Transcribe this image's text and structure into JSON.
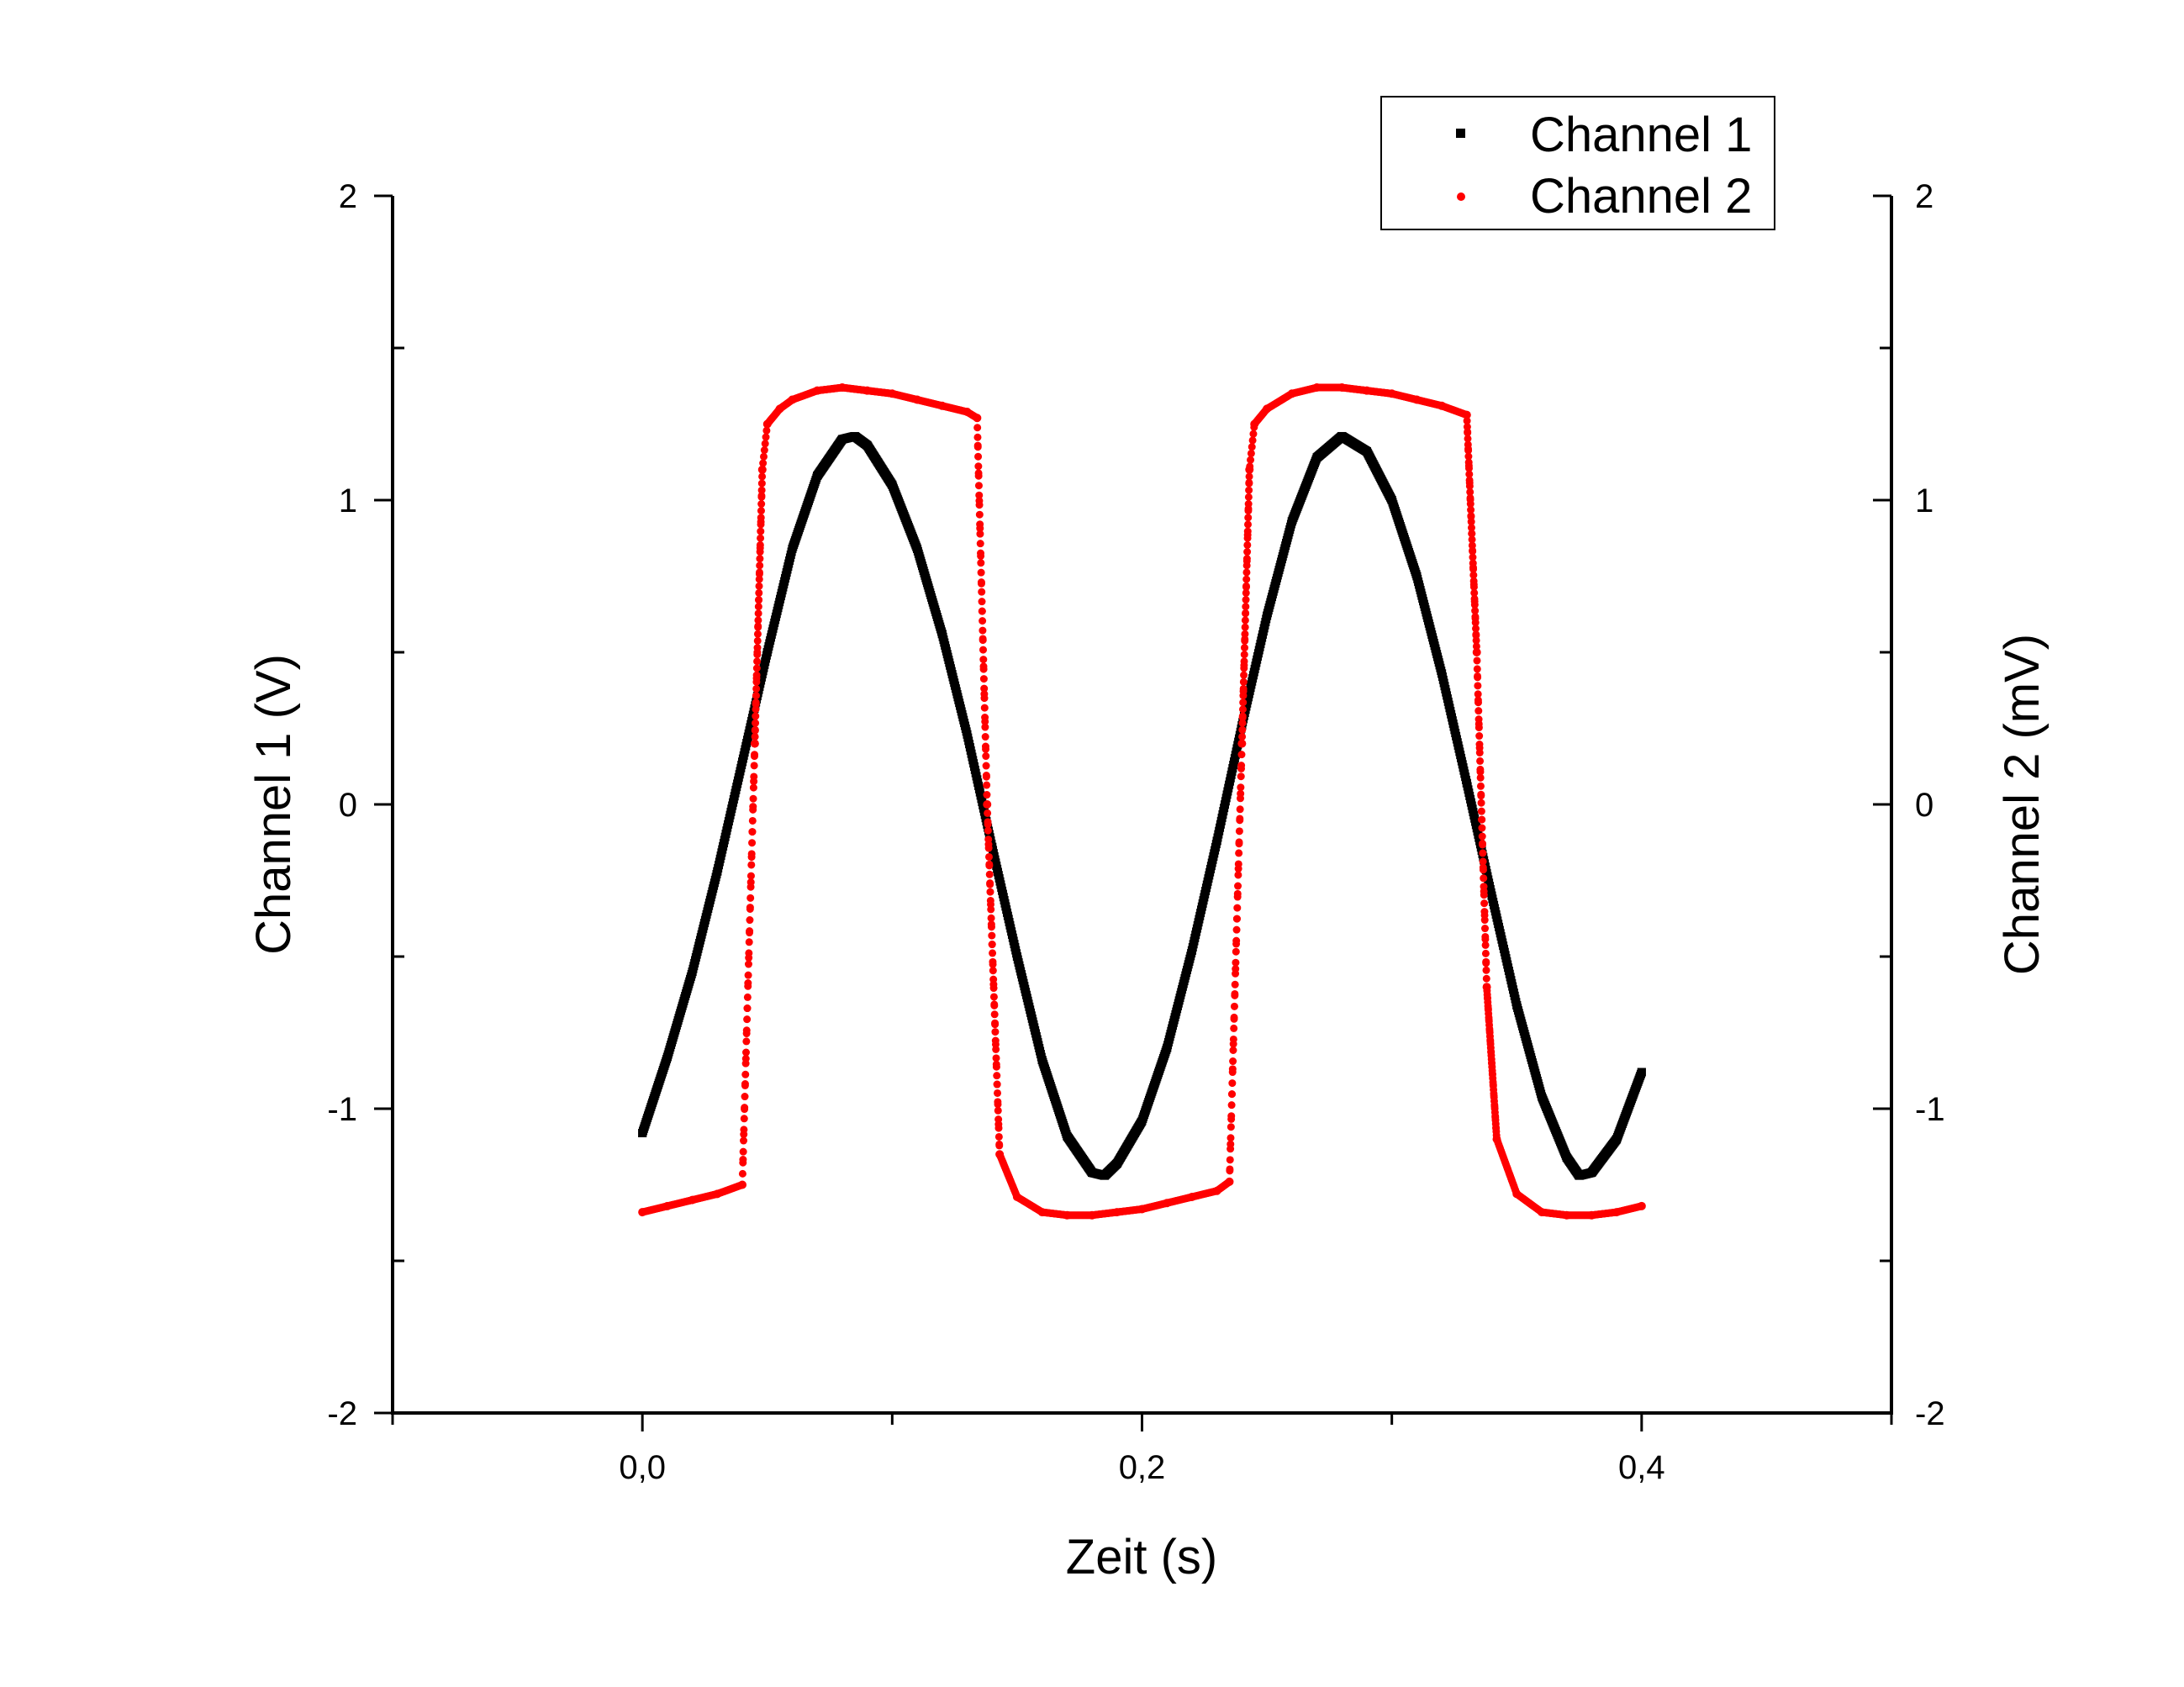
{
  "chart_data": {
    "type": "scatter",
    "title": "",
    "xlabel": "Zeit (s)",
    "ylabel_left": "Channel 1 (V)",
    "ylabel_right": "Channel 2 (mV)",
    "xlim": [
      -0.1,
      0.5
    ],
    "ylim_left": [
      -2,
      2
    ],
    "ylim_right": [
      -2,
      2
    ],
    "x_ticks": [
      -0.1,
      0.0,
      0.1,
      0.2,
      0.3,
      0.4,
      0.5
    ],
    "x_tick_labels": [
      "",
      "0,0",
      "",
      "0,2",
      "",
      "0,4",
      ""
    ],
    "y_tick_labels_left": [
      "2",
      "1",
      "0",
      "-1",
      "-2"
    ],
    "y_tick_labels_right": [
      "2",
      "1",
      "0",
      "-1",
      "-2"
    ],
    "grid": false,
    "legend_position": "top-right",
    "series": [
      {
        "name": "Channel 1",
        "color": "#000000",
        "marker": "square",
        "axis": "left",
        "points": [
          [
            0.0,
            -1.08
          ],
          [
            0.01,
            -0.83
          ],
          [
            0.02,
            -0.55
          ],
          [
            0.03,
            -0.22
          ],
          [
            0.04,
            0.14
          ],
          [
            0.05,
            0.5
          ],
          [
            0.06,
            0.84
          ],
          [
            0.07,
            1.08
          ],
          [
            0.08,
            1.2
          ],
          [
            0.085,
            1.21
          ],
          [
            0.09,
            1.18
          ],
          [
            0.1,
            1.05
          ],
          [
            0.11,
            0.84
          ],
          [
            0.12,
            0.56
          ],
          [
            0.13,
            0.23
          ],
          [
            0.14,
            -0.14
          ],
          [
            0.15,
            -0.5
          ],
          [
            0.16,
            -0.84
          ],
          [
            0.17,
            -1.09
          ],
          [
            0.18,
            -1.21
          ],
          [
            0.185,
            -1.22
          ],
          [
            0.19,
            -1.18
          ],
          [
            0.2,
            -1.04
          ],
          [
            0.21,
            -0.8
          ],
          [
            0.22,
            -0.48
          ],
          [
            0.23,
            -0.12
          ],
          [
            0.24,
            0.26
          ],
          [
            0.25,
            0.62
          ],
          [
            0.26,
            0.93
          ],
          [
            0.27,
            1.14
          ],
          [
            0.28,
            1.21
          ],
          [
            0.29,
            1.16
          ],
          [
            0.3,
            1.0
          ],
          [
            0.31,
            0.75
          ],
          [
            0.32,
            0.43
          ],
          [
            0.33,
            0.07
          ],
          [
            0.34,
            -0.3
          ],
          [
            0.35,
            -0.66
          ],
          [
            0.36,
            -0.96
          ],
          [
            0.37,
            -1.16
          ],
          [
            0.375,
            -1.22
          ],
          [
            0.38,
            -1.21
          ],
          [
            0.39,
            -1.1
          ],
          [
            0.4,
            -0.88
          ]
        ]
      },
      {
        "name": "Channel 2",
        "color": "#ff0000",
        "marker": "circle",
        "axis": "right",
        "points": [
          [
            0.0,
            -1.34
          ],
          [
            0.01,
            -1.32
          ],
          [
            0.02,
            -1.3
          ],
          [
            0.03,
            -1.28
          ],
          [
            0.04,
            -1.25
          ],
          [
            0.045,
            0.2
          ],
          [
            0.048,
            1.1
          ],
          [
            0.05,
            1.25
          ],
          [
            0.055,
            1.3
          ],
          [
            0.06,
            1.33
          ],
          [
            0.07,
            1.36
          ],
          [
            0.08,
            1.37
          ],
          [
            0.09,
            1.36
          ],
          [
            0.1,
            1.35
          ],
          [
            0.11,
            1.33
          ],
          [
            0.12,
            1.31
          ],
          [
            0.13,
            1.29
          ],
          [
            0.134,
            1.27
          ],
          [
            0.138,
            0.0
          ],
          [
            0.143,
            -1.15
          ],
          [
            0.15,
            -1.29
          ],
          [
            0.16,
            -1.34
          ],
          [
            0.17,
            -1.35
          ],
          [
            0.18,
            -1.35
          ],
          [
            0.19,
            -1.34
          ],
          [
            0.2,
            -1.33
          ],
          [
            0.21,
            -1.31
          ],
          [
            0.22,
            -1.29
          ],
          [
            0.23,
            -1.27
          ],
          [
            0.235,
            -1.24
          ],
          [
            0.24,
            0.2
          ],
          [
            0.243,
            1.1
          ],
          [
            0.245,
            1.25
          ],
          [
            0.25,
            1.3
          ],
          [
            0.26,
            1.35
          ],
          [
            0.27,
            1.37
          ],
          [
            0.28,
            1.37
          ],
          [
            0.29,
            1.36
          ],
          [
            0.3,
            1.35
          ],
          [
            0.31,
            1.33
          ],
          [
            0.32,
            1.31
          ],
          [
            0.33,
            1.28
          ],
          [
            0.334,
            0.5
          ],
          [
            0.338,
            -0.6
          ],
          [
            0.342,
            -1.1
          ],
          [
            0.35,
            -1.28
          ],
          [
            0.36,
            -1.34
          ],
          [
            0.37,
            -1.35
          ],
          [
            0.38,
            -1.35
          ],
          [
            0.39,
            -1.34
          ],
          [
            0.4,
            -1.32
          ]
        ]
      }
    ]
  }
}
